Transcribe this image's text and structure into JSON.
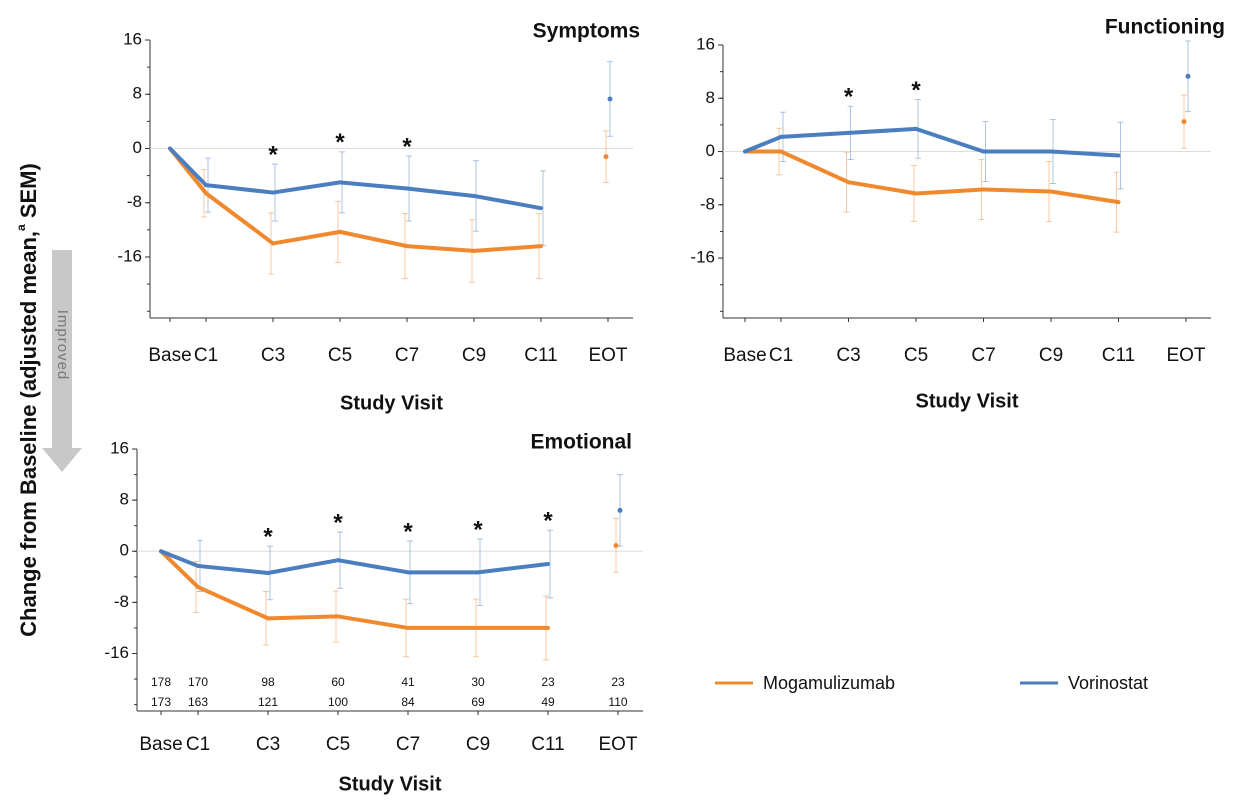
{
  "y_label": [
    "Change from Baseline (adjusted mean,",
    "a",
    " SEM)"
  ],
  "improved_label": "Improved",
  "chart_data": [
    {
      "type": "line",
      "title": "Symptoms",
      "x_label": "Study Visit",
      "categories": [
        "Base",
        "C1",
        "C3",
        "C5",
        "C7",
        "C9",
        "C11",
        "EOT"
      ],
      "ylim": [
        -25,
        16
      ],
      "yticks": [
        -16,
        -8,
        0,
        8,
        16
      ],
      "star_labels": [
        null,
        null,
        "*",
        "*",
        "*",
        null,
        null,
        null
      ],
      "series": [
        {
          "name": "Mogamulizumab",
          "color": "#f0892e",
          "values": [
            0,
            -6.6,
            -14,
            -12.3,
            -14.4,
            -15.1,
            -14.4,
            -1.2
          ],
          "errors": [
            null,
            3.5,
            4.5,
            4.5,
            4.8,
            4.6,
            4.8,
            3.8
          ]
        },
        {
          "name": "Vorinostat",
          "color": "#4a7ebf",
          "values": [
            0,
            -5.4,
            -6.5,
            -5,
            -5.9,
            -7,
            -8.8,
            7.3
          ],
          "errors": [
            null,
            4,
            4.2,
            4.5,
            4.8,
            5.2,
            5.5,
            5.5
          ]
        }
      ]
    },
    {
      "type": "line",
      "title": "Functioning",
      "x_label": "Study Visit",
      "categories": [
        "Base",
        "C1",
        "C3",
        "C5",
        "C7",
        "C9",
        "C11",
        "EOT"
      ],
      "ylim": [
        -25,
        16
      ],
      "yticks": [
        -16,
        -8,
        0,
        8,
        16
      ],
      "star_labels": [
        null,
        null,
        "*",
        "*",
        null,
        null,
        null,
        null
      ],
      "series": [
        {
          "name": "Mogamulizumab",
          "color": "#f0892e",
          "values": [
            0,
            0,
            -4.6,
            -6.3,
            -5.7,
            -6,
            -7.6,
            4.5
          ],
          "errors": [
            null,
            3.5,
            4.5,
            4.2,
            4.5,
            4.5,
            4.5,
            4
          ]
        },
        {
          "name": "Vorinostat",
          "color": "#4a7ebf",
          "values": [
            0,
            2.2,
            2.8,
            3.4,
            0,
            0,
            -0.6,
            11.3
          ],
          "errors": [
            null,
            3.7,
            4,
            4.4,
            4.5,
            4.8,
            5,
            5.3
          ]
        }
      ]
    },
    {
      "type": "line",
      "title": "Emotional",
      "x_label": "Study Visit",
      "categories": [
        "Base",
        "C1",
        "C3",
        "C5",
        "C7",
        "C9",
        "C11",
        "EOT"
      ],
      "ylim": [
        -25,
        16
      ],
      "yticks": [
        -16,
        -8,
        0,
        8,
        16
      ],
      "star_labels": [
        null,
        null,
        "*",
        "*",
        "*",
        "*",
        "*",
        null
      ],
      "series": [
        {
          "name": "Mogamulizumab",
          "color": "#f0892e",
          "values": [
            0,
            -5.6,
            -10.5,
            -10.2,
            -12,
            -12,
            -12,
            0.9
          ],
          "errors": [
            null,
            4,
            4.2,
            4,
            4.5,
            4.5,
            5,
            4.2
          ],
          "n_at_risk": [
            178,
            170,
            98,
            60,
            41,
            30,
            23,
            23
          ]
        },
        {
          "name": "Vorinostat",
          "color": "#4a7ebf",
          "values": [
            0,
            -2.3,
            -3.4,
            -1.4,
            -3.3,
            -3.3,
            -2,
            6.4
          ],
          "errors": [
            null,
            4,
            4.2,
            4.4,
            4.9,
            5.2,
            5.3,
            5.6
          ],
          "n_at_risk": [
            173,
            163,
            121,
            100,
            84,
            69,
            49,
            110
          ]
        }
      ]
    }
  ]
}
